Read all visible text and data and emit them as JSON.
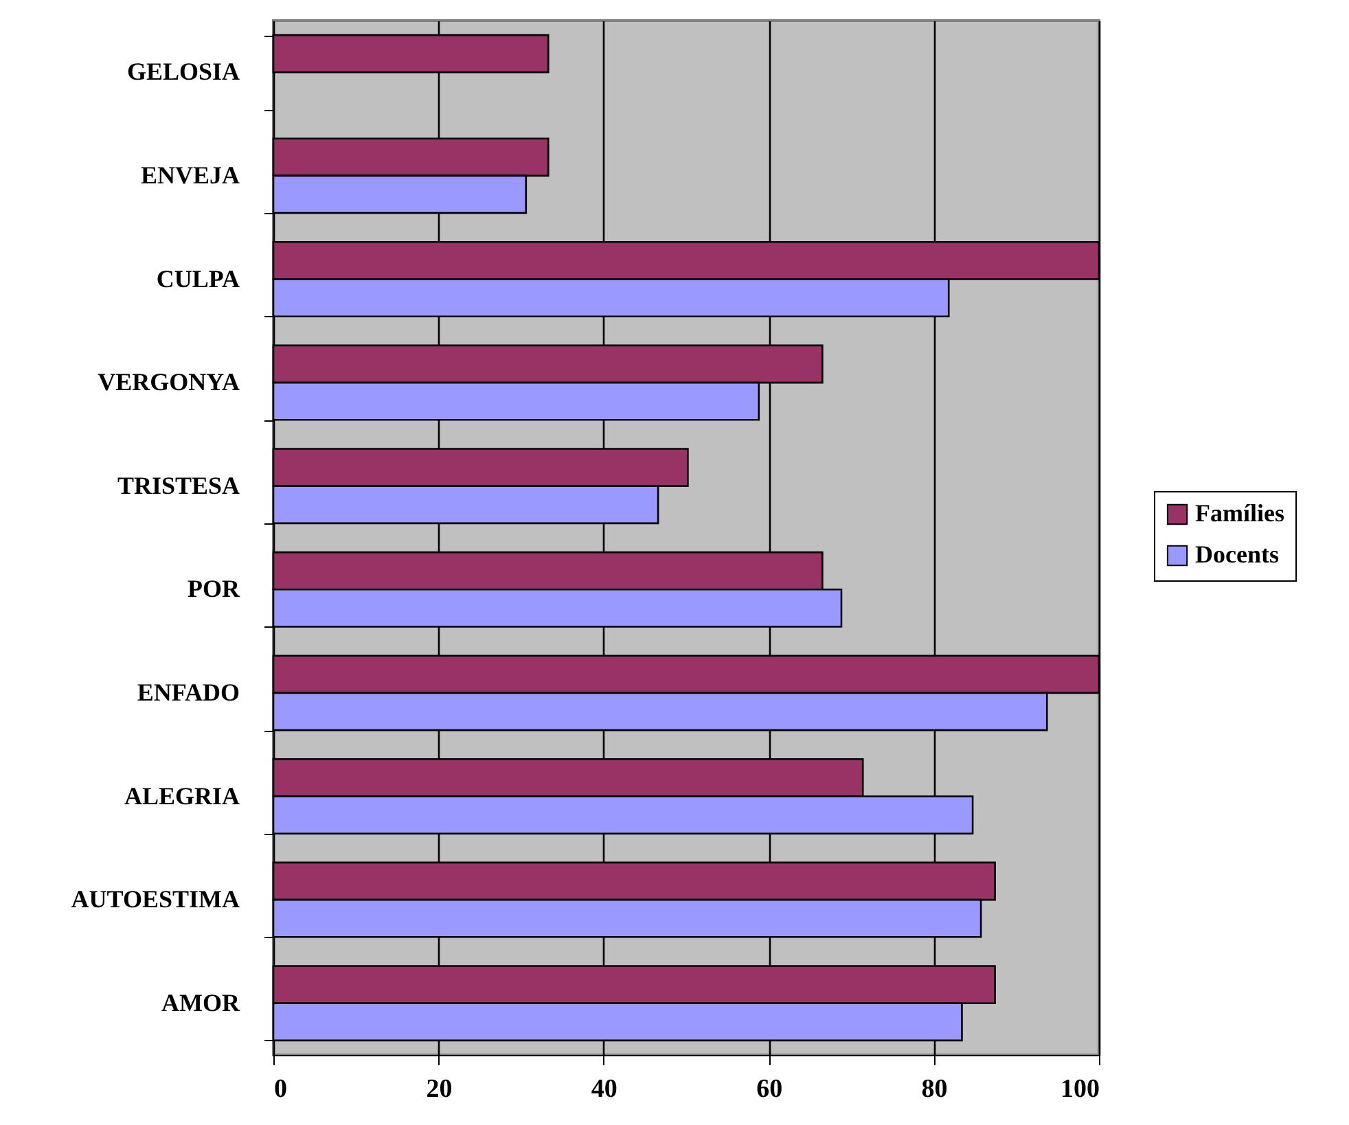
{
  "chart_data": {
    "type": "bar",
    "orientation": "horizontal",
    "categories": [
      "GELOSIA",
      "ENVEJA",
      "CULPA",
      "VERGONYA",
      "TRISTESA",
      "POR",
      "ENFADO",
      "ALEGRIA",
      "AUTOESTIMA",
      "AMOR"
    ],
    "series": [
      {
        "name": "Famílies",
        "color": "#993366",
        "values": [
          33.3,
          33.3,
          100,
          66.5,
          50.2,
          66.5,
          100,
          71.4,
          87.4,
          87.4
        ]
      },
      {
        "name": "Docents",
        "color": "#9999ff",
        "values": [
          null,
          30.6,
          81.8,
          58.8,
          46.6,
          68.8,
          93.7,
          84.7,
          85.7,
          83.4
        ]
      }
    ],
    "xlim": [
      0,
      100
    ],
    "xticks": [
      0,
      20,
      40,
      60,
      80,
      100
    ],
    "grid": "x",
    "legend": "right"
  }
}
